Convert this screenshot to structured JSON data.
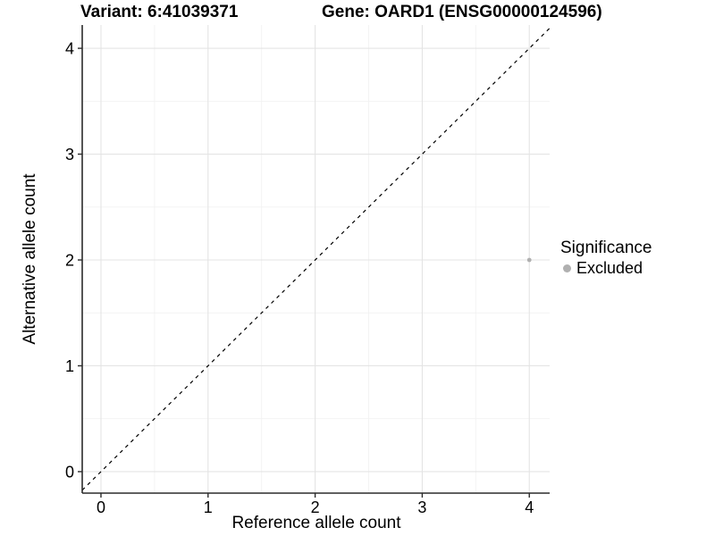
{
  "header": {
    "variant_title": "Variant: 6:41039371",
    "gene_title": "Gene: OARD1 (ENSG00000124596)"
  },
  "chart_data": {
    "type": "scatter",
    "xlabel": "Reference allele count",
    "ylabel": "Alternative allele count",
    "x_ticks": [
      0,
      1,
      2,
      3,
      4
    ],
    "y_ticks": [
      0,
      1,
      2,
      3,
      4
    ],
    "x_minor_ticks": [
      0.5,
      1.5,
      2.5,
      3.5
    ],
    "y_minor_ticks": [
      0.5,
      1.5,
      2.5,
      3.5
    ],
    "xlim": [
      -0.175,
      4.19
    ],
    "ylim": [
      -0.203,
      4.22
    ],
    "grid": true,
    "legend_position": "right",
    "series": [
      {
        "name": "Excluded",
        "color": "#b0b0b0",
        "point_radius": 2.4,
        "points": [
          {
            "x": 4,
            "y": 2
          }
        ]
      }
    ],
    "abline": {
      "slope": 1,
      "intercept": 0,
      "linetype": "dashed",
      "color": "#000000"
    },
    "colors": {
      "panel_background": "#ffffff",
      "grid_major": "#e4e4e4",
      "grid_minor": "#f2f2f2",
      "axis_line": "#2b2b2b",
      "tick": "#2b2b2b",
      "text": "#000000"
    }
  },
  "legend": {
    "title": "Significance",
    "items": [
      {
        "label": "Excluded",
        "color": "#b0b0b0"
      }
    ]
  }
}
